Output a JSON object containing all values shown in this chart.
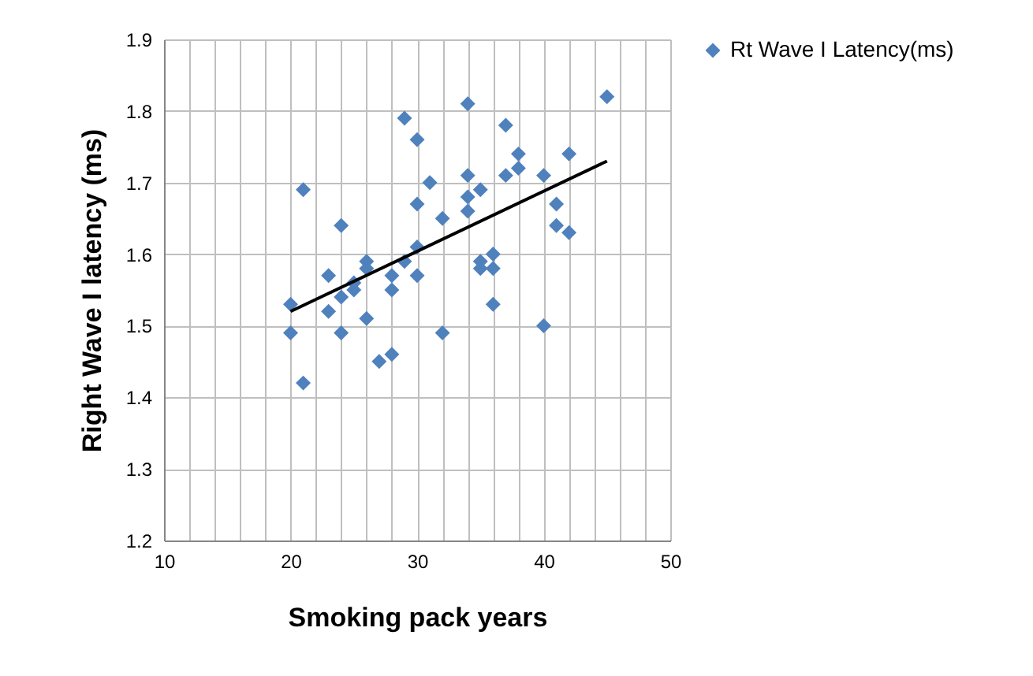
{
  "chart_data": {
    "type": "scatter",
    "xlabel": "Smoking pack years",
    "ylabel": "Right Wave I latency (ms)",
    "xlim": [
      10,
      50
    ],
    "ylim": [
      1.2,
      1.9
    ],
    "xticks": [
      10,
      {
        "value": 12,
        "label": null
      },
      {
        "value": 14,
        "label": null
      },
      {
        "value": 16,
        "label": null
      },
      {
        "value": 18,
        "label": null
      },
      20,
      {
        "value": 22,
        "label": null
      },
      {
        "value": 24,
        "label": null
      },
      {
        "value": 26,
        "label": null
      },
      {
        "value": 28,
        "label": null
      },
      30,
      {
        "value": 32,
        "label": null
      },
      {
        "value": 34,
        "label": null
      },
      {
        "value": 36,
        "label": null
      },
      {
        "value": 38,
        "label": null
      },
      40,
      {
        "value": 42,
        "label": null
      },
      {
        "value": 44,
        "label": null
      },
      {
        "value": 46,
        "label": null
      },
      {
        "value": 48,
        "label": null
      },
      50
    ],
    "yticks": [
      1.2,
      1.3,
      1.4,
      1.5,
      1.6,
      1.7,
      1.8,
      1.9
    ],
    "grid": true,
    "legend": "right",
    "series": [
      {
        "type": "scatter",
        "name": "Rt Wave I Latency(ms)",
        "color": "#4f81bd",
        "marker": "diamond",
        "x": [
          20,
          20,
          21,
          21,
          23,
          23,
          24,
          24,
          24,
          25,
          25,
          26,
          26,
          26,
          27,
          28,
          28,
          28,
          29,
          29,
          30,
          30,
          30,
          30,
          31,
          32,
          32,
          34,
          34,
          34,
          34,
          35,
          35,
          35,
          36,
          36,
          36,
          37,
          37,
          38,
          38,
          40,
          40,
          41,
          41,
          42,
          42,
          45
        ],
        "values": [
          1.49,
          1.53,
          1.69,
          1.42,
          1.57,
          1.52,
          1.64,
          1.49,
          1.54,
          1.56,
          1.55,
          1.59,
          1.58,
          1.51,
          1.45,
          1.46,
          1.57,
          1.55,
          1.79,
          1.59,
          1.76,
          1.67,
          1.61,
          1.57,
          1.7,
          1.65,
          1.49,
          1.81,
          1.71,
          1.68,
          1.66,
          1.69,
          1.59,
          1.58,
          1.6,
          1.58,
          1.53,
          1.78,
          1.71,
          1.74,
          1.72,
          1.71,
          1.5,
          1.67,
          1.64,
          1.63,
          1.74,
          1.82
        ]
      },
      {
        "type": "line",
        "color": "#000000",
        "x": [
          20,
          45
        ],
        "values": [
          1.52,
          1.73
        ]
      }
    ]
  }
}
